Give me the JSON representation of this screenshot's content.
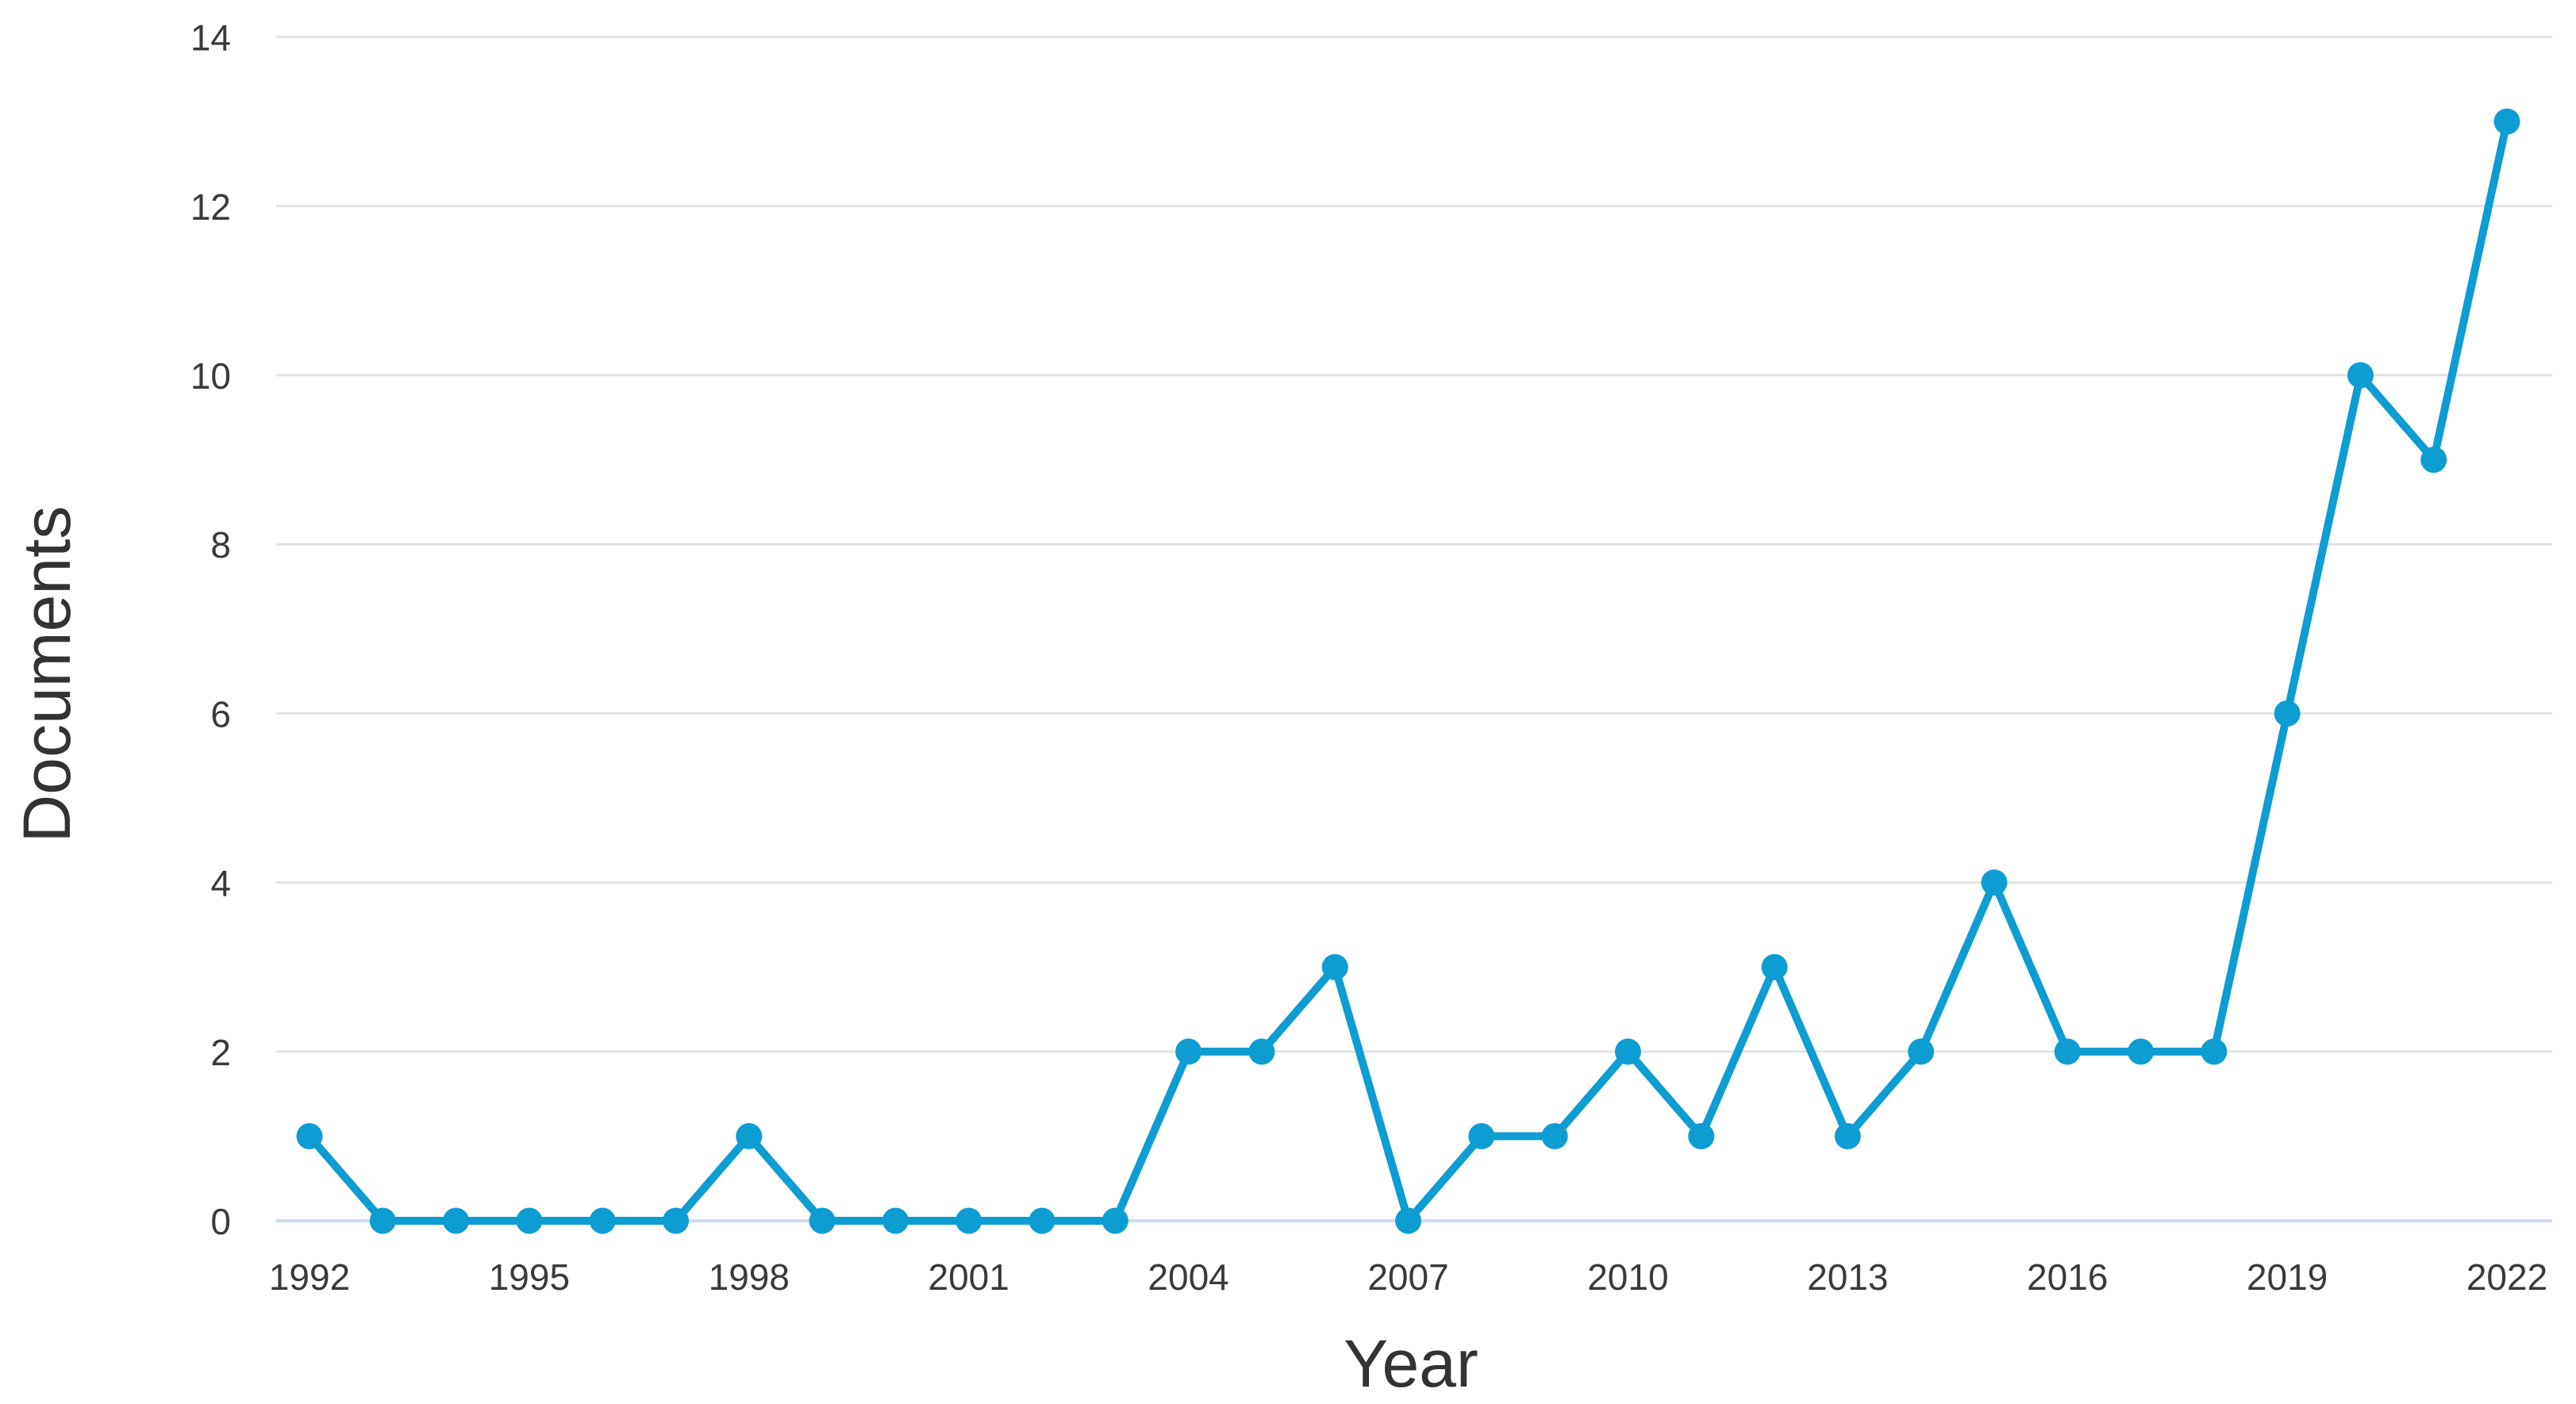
{
  "chart_data": {
    "type": "line",
    "title": "",
    "xlabel": "Year",
    "ylabel": "Documents",
    "x": [
      1992,
      1993,
      1994,
      1995,
      1996,
      1997,
      1998,
      1999,
      2000,
      2001,
      2002,
      2003,
      2004,
      2005,
      2006,
      2007,
      2008,
      2009,
      2010,
      2011,
      2012,
      2013,
      2014,
      2015,
      2016,
      2017,
      2018,
      2019,
      2020,
      2021,
      2022
    ],
    "series": [
      {
        "name": "Documents",
        "values": [
          1,
          0,
          0,
          0,
          0,
          0,
          1,
          0,
          0,
          0,
          0,
          0,
          2,
          2,
          3,
          0,
          1,
          1,
          2,
          1,
          3,
          1,
          2,
          4,
          2,
          2,
          2,
          6,
          10,
          9,
          13
        ]
      }
    ],
    "xlim": [
      1992,
      2022
    ],
    "ylim": [
      0,
      14
    ],
    "yticks": [
      0,
      2,
      4,
      6,
      8,
      10,
      12,
      14
    ],
    "xticks": [
      1992,
      1995,
      1998,
      2001,
      2004,
      2007,
      2010,
      2013,
      2016,
      2019,
      2022
    ],
    "grid": "horizontal",
    "legend_position": "none",
    "colors": {
      "line": "#0d9dd3",
      "marker": "#0d9dd3",
      "gridline": "#e3e3e3",
      "zero_gridline": "#d2d9f1",
      "tick_label": "#3a3a3a",
      "axis_title": "#333333",
      "background": "#ffffff"
    }
  }
}
